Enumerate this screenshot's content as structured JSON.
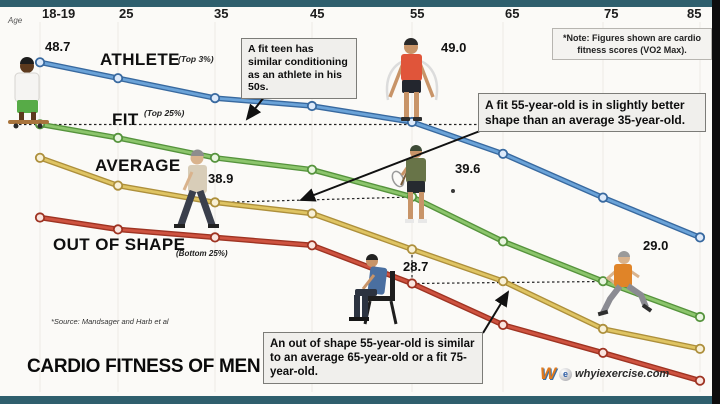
{
  "ui": {
    "age_axis_label": "Age",
    "title": "CARDIO FITNESS OF MEN",
    "source": "*Source: Mandsager and Harb et al",
    "note": "*Note: Figures shown are cardio fitness scores (VO2 Max).",
    "callouts": {
      "fit_teen": "A fit teen has similar conditioning as an athlete in his 50s.",
      "fit_55": "A fit 55-year-old is in slightly better shape than an average 35-year-old.",
      "out_of_shape_55": "An out of shape 55-year-old is similar to an average 65-year-old or a fit 75-year-old."
    },
    "logo": {
      "w": "W",
      "e": "e",
      "site": "whyiexercise.com"
    }
  },
  "colors": {
    "athlete_blue": "#4f93ce",
    "fit_green": "#7cc05e",
    "average_yellow": "#ddc25f",
    "out_of_shape_red": "#cc4733",
    "frame_teal": "#2f5f6d",
    "frame_black": "#0d0d0d"
  },
  "chart_data": {
    "type": "line",
    "title": "CARDIO FITNESS OF MEN",
    "xlabel": "Age",
    "ylabel": "Cardio fitness score (VO2 Max)",
    "categories": [
      "18-19",
      "25",
      "35",
      "45",
      "55",
      "65",
      "75",
      "85"
    ],
    "series": [
      {
        "name": "ATHLETE",
        "qualifier": "(Top 3%)",
        "color": "#4f93ce",
        "values": [
          56.5,
          54.5,
          52.0,
          51.0,
          49.0,
          45.0,
          39.5,
          34.5
        ]
      },
      {
        "name": "FIT",
        "qualifier": "(Top 25%)",
        "color": "#7cc05e",
        "values": [
          48.7,
          47.0,
          44.5,
          43.0,
          39.6,
          34.0,
          29.0,
          24.5
        ]
      },
      {
        "name": "AVERAGE",
        "qualifier": "",
        "color": "#ddc25f",
        "values": [
          44.5,
          41.0,
          38.9,
          37.5,
          33.0,
          29.0,
          23.0,
          20.5
        ]
      },
      {
        "name": "OUT OF SHAPE",
        "qualifier": "(Bottom 25%)",
        "color": "#cc4733",
        "values": [
          37.0,
          35.5,
          34.5,
          33.5,
          28.7,
          23.5,
          20.0,
          16.5
        ]
      }
    ],
    "labeled_points": [
      {
        "series": "FIT",
        "age": "18-19",
        "value": "48.7"
      },
      {
        "series": "ATHLETE",
        "age": "55",
        "value": "49.0"
      },
      {
        "series": "AVERAGE",
        "age": "35",
        "value": "38.9"
      },
      {
        "series": "FIT",
        "age": "55",
        "value": "39.6"
      },
      {
        "series": "OUT OF SHAPE",
        "age": "55",
        "value": "28.7"
      },
      {
        "series": "FIT",
        "age": "75",
        "value": "29.0"
      }
    ],
    "ylim": [
      14,
      60
    ],
    "grid": "vertical-age-gridlines",
    "legend_position": "labels-on-lines"
  }
}
